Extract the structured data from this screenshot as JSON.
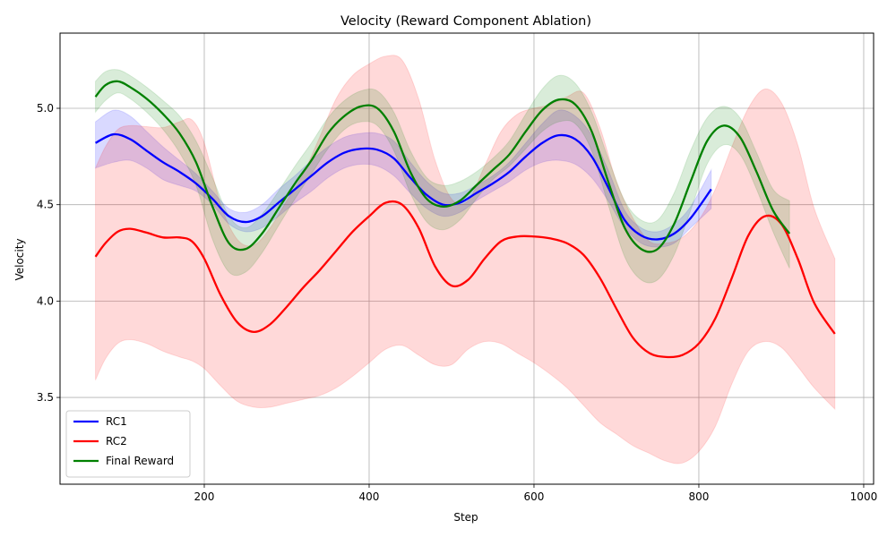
{
  "chart_data": {
    "type": "line",
    "title": "Velocity (Reward Component Ablation)",
    "xlabel": "Step",
    "ylabel": "Velocity",
    "xlim": [
      25,
      1012
    ],
    "ylim": [
      3.05,
      5.39
    ],
    "xticks": [
      200,
      400,
      600,
      800,
      1000
    ],
    "yticks": [
      3.5,
      4.0,
      4.5,
      5.0
    ],
    "xtick_labels": [
      "200",
      "400",
      "600",
      "800",
      "1000"
    ],
    "ytick_labels": [
      "3.5",
      "4.0",
      "4.5",
      "5.0"
    ],
    "grid": true,
    "legend_position": "lower-left",
    "series": [
      {
        "name": "RC1",
        "color": "#0000ff",
        "x": [
          68,
          90,
          110,
          130,
          150,
          170,
          190,
          210,
          230,
          250,
          270,
          290,
          310,
          330,
          350,
          370,
          390,
          410,
          430,
          450,
          470,
          490,
          510,
          530,
          550,
          570,
          590,
          610,
          630,
          650,
          670,
          690,
          710,
          730,
          750,
          770,
          790,
          815
        ],
        "y": [
          4.82,
          4.865,
          4.84,
          4.78,
          4.72,
          4.67,
          4.61,
          4.53,
          4.44,
          4.41,
          4.44,
          4.51,
          4.58,
          4.65,
          4.72,
          4.77,
          4.79,
          4.785,
          4.74,
          4.64,
          4.55,
          4.5,
          4.51,
          4.56,
          4.61,
          4.67,
          4.75,
          4.82,
          4.86,
          4.84,
          4.75,
          4.59,
          4.42,
          4.34,
          4.32,
          4.35,
          4.43,
          4.58
        ],
        "lower": [
          4.69,
          4.72,
          4.73,
          4.69,
          4.63,
          4.6,
          4.57,
          4.5,
          4.4,
          4.36,
          4.38,
          4.44,
          4.51,
          4.57,
          4.64,
          4.69,
          4.71,
          4.7,
          4.65,
          4.56,
          4.48,
          4.44,
          4.46,
          4.52,
          4.57,
          4.62,
          4.68,
          4.72,
          4.73,
          4.71,
          4.64,
          4.52,
          4.38,
          4.3,
          4.28,
          4.3,
          4.38,
          4.48
        ],
        "upper": [
          4.93,
          4.99,
          4.96,
          4.88,
          4.8,
          4.73,
          4.66,
          4.57,
          4.48,
          4.46,
          4.5,
          4.58,
          4.65,
          4.73,
          4.8,
          4.85,
          4.87,
          4.87,
          4.83,
          4.72,
          4.62,
          4.56,
          4.56,
          4.6,
          4.65,
          4.72,
          4.82,
          4.92,
          4.99,
          4.96,
          4.86,
          4.68,
          4.47,
          4.38,
          4.36,
          4.4,
          4.49,
          4.68
        ]
      },
      {
        "name": "RC2",
        "color": "#ff0000",
        "x": [
          68,
          80,
          95,
          110,
          130,
          150,
          170,
          185,
          200,
          220,
          240,
          260,
          280,
          300,
          320,
          340,
          360,
          380,
          400,
          420,
          440,
          460,
          480,
          500,
          520,
          540,
          560,
          580,
          600,
          620,
          640,
          660,
          680,
          700,
          720,
          740,
          760,
          780,
          800,
          820,
          840,
          860,
          880,
          900,
          920,
          940,
          965
        ],
        "y": [
          4.23,
          4.3,
          4.36,
          4.375,
          4.355,
          4.33,
          4.33,
          4.31,
          4.22,
          4.03,
          3.89,
          3.84,
          3.88,
          3.97,
          4.07,
          4.16,
          4.26,
          4.36,
          4.44,
          4.51,
          4.5,
          4.38,
          4.18,
          4.08,
          4.11,
          4.22,
          4.31,
          4.335,
          4.335,
          4.325,
          4.3,
          4.24,
          4.12,
          3.96,
          3.81,
          3.73,
          3.71,
          3.72,
          3.78,
          3.91,
          4.12,
          4.34,
          4.44,
          4.4,
          4.22,
          3.99,
          3.83
        ],
        "lower": [
          3.59,
          3.7,
          3.78,
          3.8,
          3.78,
          3.74,
          3.71,
          3.69,
          3.65,
          3.56,
          3.48,
          3.45,
          3.45,
          3.47,
          3.49,
          3.51,
          3.55,
          3.61,
          3.68,
          3.75,
          3.77,
          3.72,
          3.67,
          3.67,
          3.75,
          3.79,
          3.78,
          3.73,
          3.68,
          3.62,
          3.55,
          3.46,
          3.37,
          3.31,
          3.25,
          3.21,
          3.17,
          3.16,
          3.22,
          3.35,
          3.57,
          3.74,
          3.79,
          3.76,
          3.66,
          3.55,
          3.44
        ],
        "upper": [
          4.69,
          4.8,
          4.89,
          4.91,
          4.905,
          4.9,
          4.93,
          4.94,
          4.82,
          4.5,
          4.32,
          4.29,
          4.38,
          4.52,
          4.66,
          4.85,
          5.05,
          5.17,
          5.23,
          5.27,
          5.25,
          5.05,
          4.73,
          4.53,
          4.52,
          4.7,
          4.88,
          4.97,
          5.0,
          5.02,
          5.06,
          5.08,
          4.9,
          4.62,
          4.43,
          4.31,
          4.3,
          4.33,
          4.42,
          4.58,
          4.8,
          5.0,
          5.1,
          5.03,
          4.81,
          4.48,
          4.22
        ]
      },
      {
        "name": "Final Reward",
        "color": "#008000",
        "x": [
          68,
          80,
          95,
          110,
          130,
          150,
          170,
          190,
          210,
          230,
          250,
          270,
          290,
          310,
          330,
          350,
          370,
          390,
          410,
          430,
          450,
          470,
          490,
          510,
          530,
          550,
          570,
          590,
          610,
          630,
          650,
          670,
          690,
          710,
          730,
          750,
          770,
          790,
          810,
          830,
          850,
          870,
          890,
          910
        ],
        "y": [
          5.06,
          5.12,
          5.14,
          5.11,
          5.05,
          4.97,
          4.87,
          4.72,
          4.49,
          4.3,
          4.27,
          4.35,
          4.48,
          4.61,
          4.73,
          4.87,
          4.96,
          5.01,
          5.0,
          4.88,
          4.67,
          4.53,
          4.49,
          4.52,
          4.6,
          4.68,
          4.76,
          4.88,
          4.99,
          5.045,
          5.02,
          4.88,
          4.62,
          4.38,
          4.27,
          4.27,
          4.4,
          4.62,
          4.83,
          4.91,
          4.85,
          4.67,
          4.47,
          4.35
        ],
        "lower": [
          4.98,
          5.04,
          5.08,
          5.05,
          4.98,
          4.89,
          4.77,
          4.6,
          4.32,
          4.15,
          4.15,
          4.25,
          4.39,
          4.53,
          4.66,
          4.79,
          4.89,
          4.93,
          4.91,
          4.78,
          4.56,
          4.41,
          4.37,
          4.42,
          4.53,
          4.63,
          4.7,
          4.79,
          4.88,
          4.93,
          4.92,
          4.78,
          4.5,
          4.23,
          4.11,
          4.11,
          4.24,
          4.47,
          4.71,
          4.81,
          4.76,
          4.58,
          4.36,
          4.17
        ],
        "upper": [
          5.14,
          5.19,
          5.2,
          5.17,
          5.11,
          5.04,
          4.96,
          4.83,
          4.64,
          4.44,
          4.38,
          4.45,
          4.57,
          4.7,
          4.82,
          4.95,
          5.04,
          5.09,
          5.09,
          4.98,
          4.78,
          4.64,
          4.6,
          4.62,
          4.67,
          4.74,
          4.83,
          4.97,
          5.1,
          5.17,
          5.13,
          4.98,
          4.74,
          4.52,
          4.42,
          4.42,
          4.56,
          4.78,
          4.95,
          5.01,
          4.95,
          4.77,
          4.58,
          4.52
        ]
      }
    ]
  }
}
